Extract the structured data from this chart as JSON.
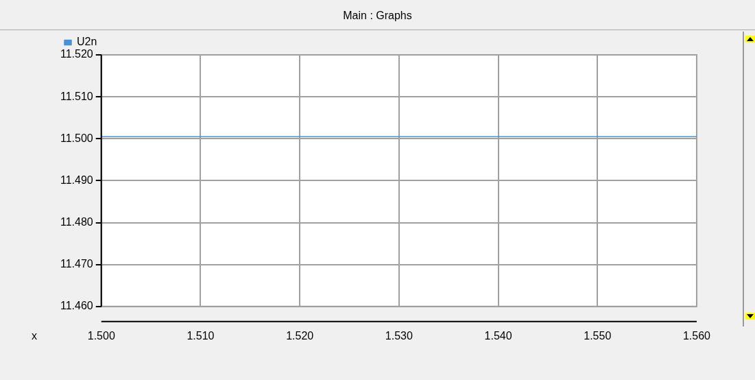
{
  "chart_data": {
    "type": "line",
    "title": "Main : Graphs",
    "xlabel": "x",
    "x": [
      1.5,
      1.56
    ],
    "series": [
      {
        "name": "U2n",
        "color": "#4a8fd9",
        "values": [
          11.5005,
          11.5005
        ]
      }
    ],
    "xlim": [
      1.5,
      1.56
    ],
    "xticks": [
      {
        "value": 1.5,
        "label": "1.500"
      },
      {
        "value": 1.51,
        "label": "1.510"
      },
      {
        "value": 1.52,
        "label": "1.520"
      },
      {
        "value": 1.53,
        "label": "1.530"
      },
      {
        "value": 1.54,
        "label": "1.540"
      },
      {
        "value": 1.55,
        "label": "1.550"
      },
      {
        "value": 1.56,
        "label": "1.560"
      }
    ],
    "ylim": [
      11.46,
      11.52
    ],
    "yticks": [
      {
        "value": 11.46,
        "label": "11.460"
      },
      {
        "value": 11.47,
        "label": "11.470"
      },
      {
        "value": 11.48,
        "label": "11.480"
      },
      {
        "value": 11.49,
        "label": "11.490"
      },
      {
        "value": 11.5,
        "label": "11.500"
      },
      {
        "value": 11.51,
        "label": "11.510"
      },
      {
        "value": 11.52,
        "label": "11.520"
      }
    ],
    "grid": true,
    "legend": "top left",
    "marker": "none",
    "line_style": "solid"
  }
}
